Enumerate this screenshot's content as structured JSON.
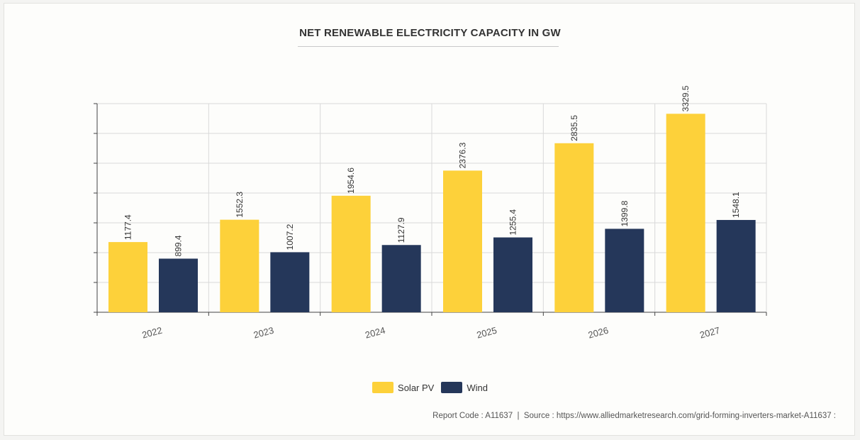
{
  "chart_data": {
    "type": "bar",
    "title": "NET RENEWABLE ELECTRICITY CAPACITY IN GW",
    "categories": [
      "2022",
      "2023",
      "2024",
      "2025",
      "2026",
      "2027"
    ],
    "series": [
      {
        "name": "Solar PV",
        "color": "#fdd13a",
        "values": [
          1177.4,
          1552.3,
          1954.6,
          2376.3,
          2835.5,
          3329.5
        ]
      },
      {
        "name": "Wind",
        "color": "#25375a",
        "values": [
          899.4,
          1007.2,
          1127.9,
          1255.4,
          1399.8,
          1548.1
        ]
      }
    ],
    "ylim": [
      0,
      3500
    ],
    "grid": true,
    "legend_position": "bottom"
  },
  "footer": {
    "text": "Report Code : A11637  |  Source : https://www.alliedmarketresearch.com/grid-forming-inverters-market-A11637 :"
  }
}
